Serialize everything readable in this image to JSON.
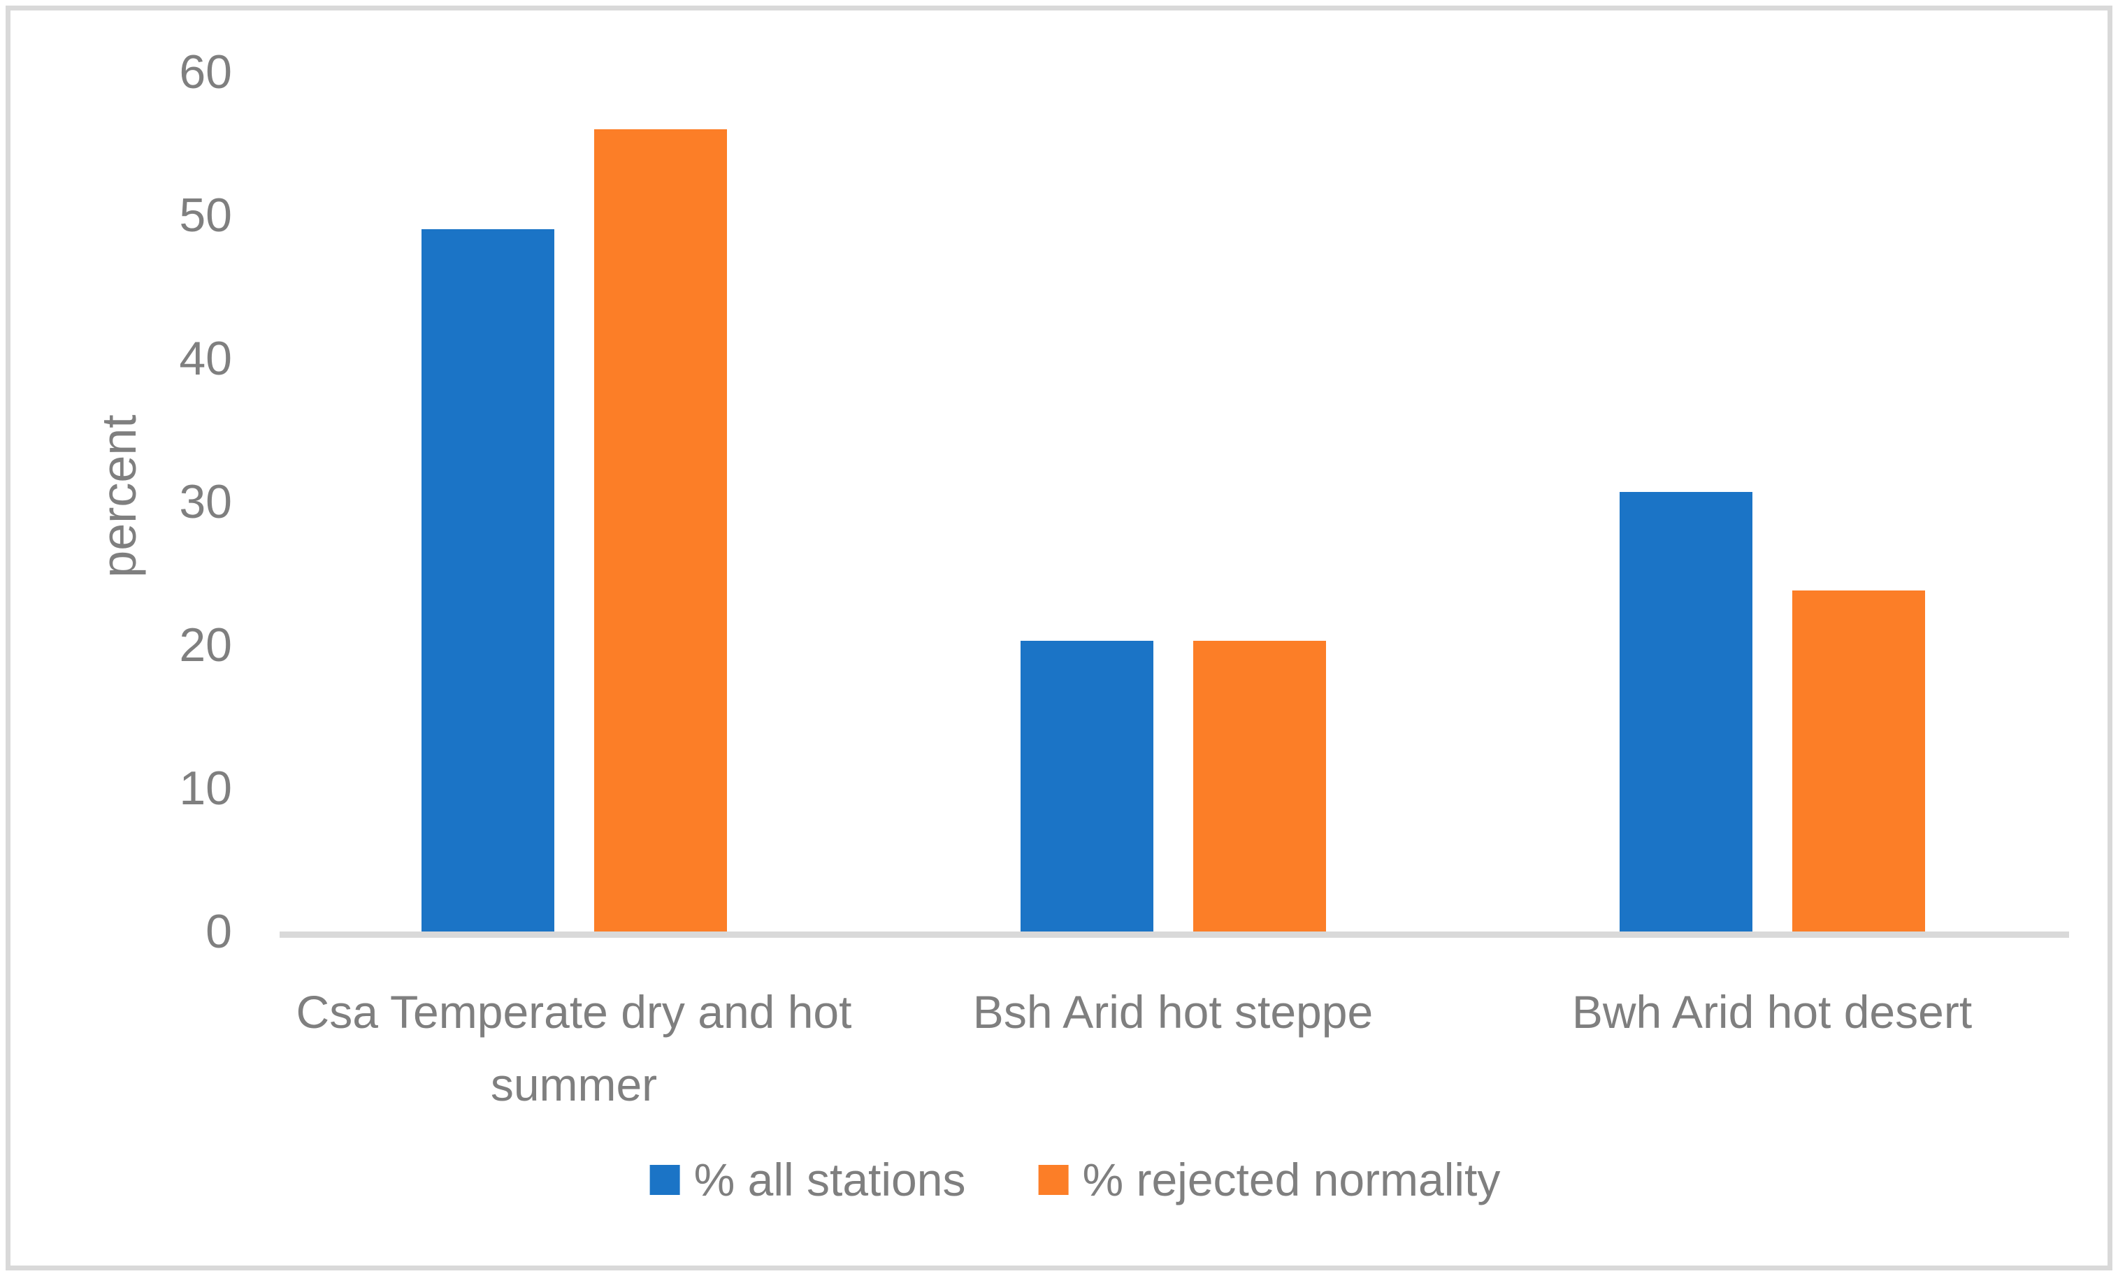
{
  "chart_data": {
    "type": "bar",
    "title": "",
    "xlabel": "",
    "ylabel": "percent",
    "categories": [
      "Csa Temperate dry and hot summer",
      "Bsh Arid hot steppe",
      "Bwh Arid hot desert"
    ],
    "series": [
      {
        "name": "% all stations",
        "color": "#1B74C6",
        "values": [
          49,
          20.3,
          30.7
        ]
      },
      {
        "name": "% rejected normality",
        "color": "#FC7E27",
        "values": [
          56,
          20.3,
          23.8
        ]
      }
    ],
    "ylim": [
      0,
      60
    ],
    "yticks": [
      0,
      10,
      20,
      30,
      40,
      50,
      60
    ],
    "grid": false,
    "legend_position": "bottom",
    "colors": {
      "text": "#7F7F7F",
      "axis_line": "#D9D9D9",
      "frame_border": "#D9D9D9",
      "background": "#FFFFFF"
    }
  }
}
